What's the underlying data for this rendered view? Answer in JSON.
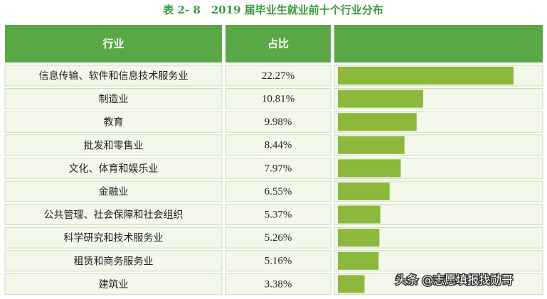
{
  "chart_data": {
    "type": "bar",
    "title": "表 2- 8　2019 届毕业生就业前十个行业分布",
    "columns": [
      "行业",
      "占比"
    ],
    "categories": [
      "信息传输、软件和信息技术服务业",
      "制造业",
      "教育",
      "批发和零售业",
      "文化、体育和娱乐业",
      "金融业",
      "公共管理、社会保障和社会组织",
      "科学研究和技术服务业",
      "租赁和商务服务业",
      "建筑业"
    ],
    "values": [
      22.27,
      10.81,
      9.98,
      8.44,
      7.97,
      6.55,
      5.37,
      5.26,
      5.16,
      3.38
    ],
    "value_labels": [
      "22.27%",
      "10.81%",
      "9.98%",
      "8.44%",
      "7.97%",
      "6.55%",
      "5.37%",
      "5.26%",
      "5.16%",
      "3.38%"
    ],
    "color": "#8cb83c",
    "header_color": "#5aa845",
    "watermark": "头条 @志愿填报找勋哥"
  }
}
